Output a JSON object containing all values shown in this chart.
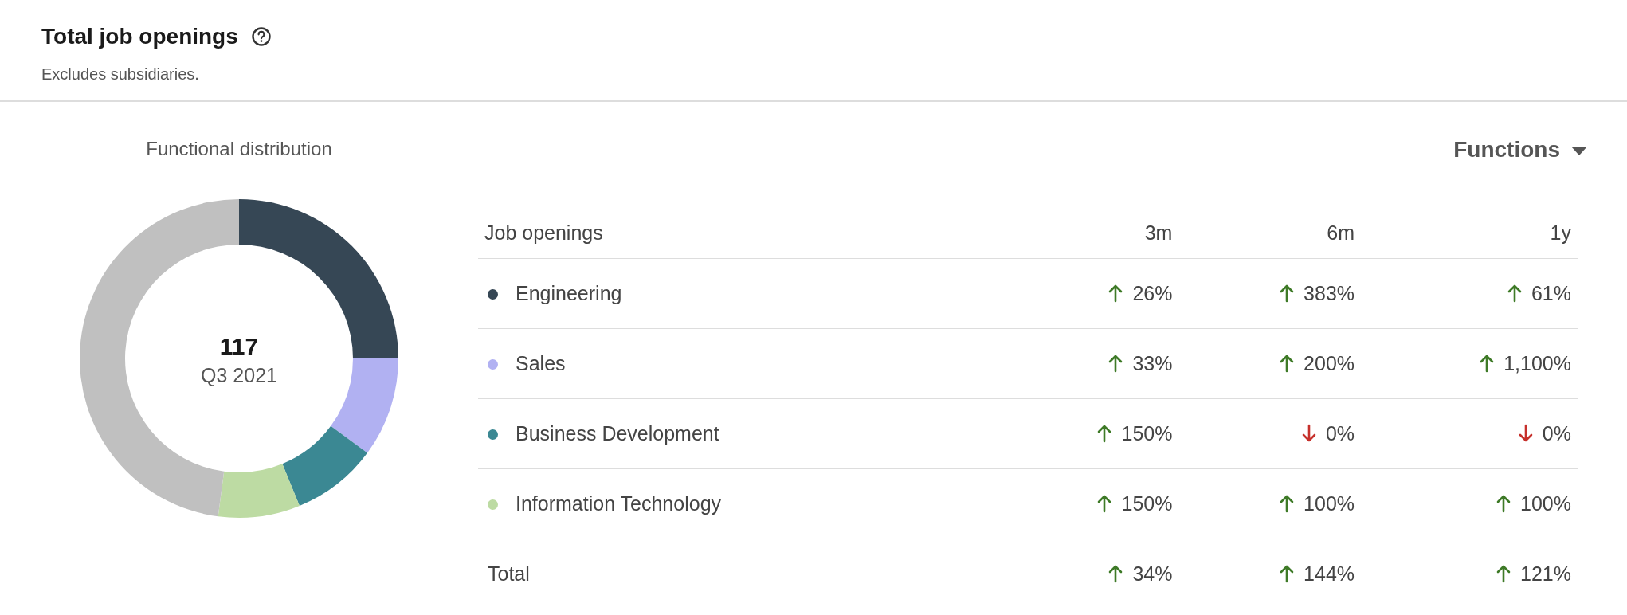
{
  "chart_data": [
    {
      "type": "donut",
      "title": "Total job openings",
      "subtitle": "Excludes subsidiaries.",
      "categories": [
        null,
        null,
        null,
        null,
        null
      ],
      "values": [
        25,
        10.1,
        8.7,
        8.3,
        47.9
      ],
      "colors": [
        "#364755",
        "#b1b1f2",
        "#3b8893",
        "#bddba3",
        "#c0c0c0"
      ],
      "annotations": [
        "Functional distribution",
        "117",
        "Q3 2021"
      ]
    },
    {
      "type": "other",
      "xlabel": "Job openings",
      "categories": [
        "Engineering",
        "Sales",
        "Business Development",
        "Information Technology",
        "Total"
      ],
      "colors": [
        "#364755",
        "#b1b1f2",
        "#3b8893",
        "#bddba3",
        null
      ],
      "annotations": [
        "Functions"
      ],
      "series": [
        {
          "name": "3m",
          "values": [
            26,
            33,
            150,
            150,
            34
          ],
          "value_labels": [
            "26%",
            "33%",
            "150%",
            "150%",
            "34%"
          ],
          "colors": [
            "#3e7a27",
            "#3e7a27",
            "#3e7a27",
            "#3e7a27",
            "#3e7a27"
          ]
        },
        {
          "name": "6m",
          "values": [
            383,
            200,
            0,
            100,
            144
          ],
          "value_labels": [
            "383%",
            "200%",
            "0%",
            "100%",
            "144%"
          ],
          "colors": [
            "#3e7a27",
            "#3e7a27",
            "#c6302b",
            "#3e7a27",
            "#3e7a27"
          ]
        },
        {
          "name": "1y",
          "values": [
            61,
            1100,
            0,
            100,
            121
          ],
          "value_labels": [
            "61%",
            "1,100%",
            "0%",
            "100%",
            "121%"
          ],
          "colors": [
            "#3e7a27",
            "#3e7a27",
            "#c6302b",
            "#3e7a27",
            "#3e7a27"
          ]
        }
      ]
    }
  ]
}
